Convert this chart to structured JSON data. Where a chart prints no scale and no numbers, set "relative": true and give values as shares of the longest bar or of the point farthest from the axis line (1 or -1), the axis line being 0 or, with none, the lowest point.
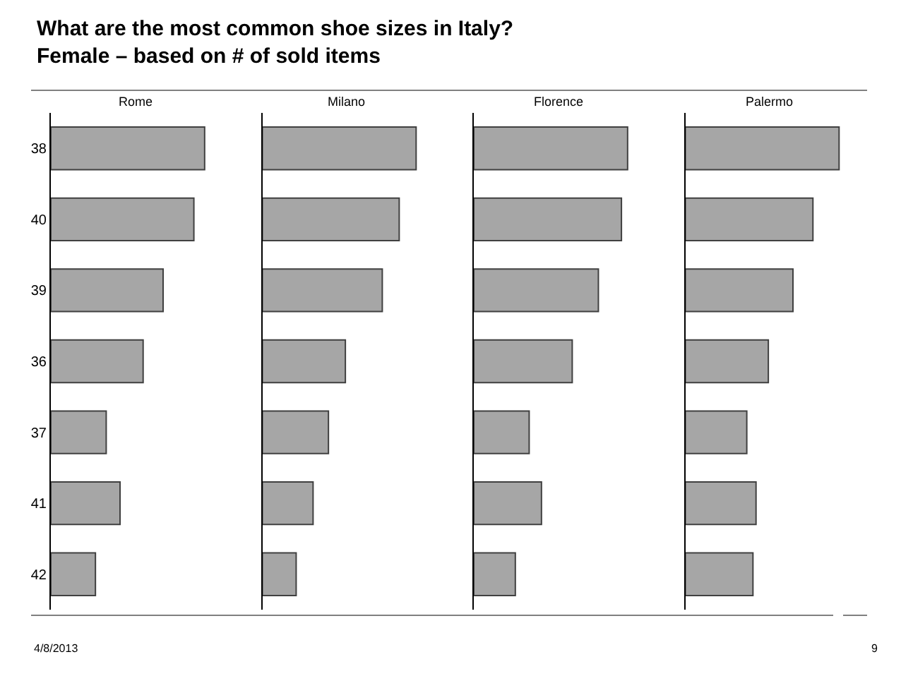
{
  "chart_data": [
    {
      "type": "other",
      "title": "What are the most common shoe sizes in Italy?",
      "subtitle": "Female – based on # of sold items",
      "annotations": [
        "4/8/2013",
        "9"
      ]
    },
    {
      "type": "bar",
      "orientation": "horizontal",
      "relative": true,
      "title": "Rome",
      "categories": [
        "38",
        "40",
        "39",
        "36",
        "37",
        "41",
        "42"
      ],
      "values": [
        1,
        0.93,
        0.73,
        0.6,
        0.36,
        0.45,
        0.29
      ],
      "color": "#a6a6a6",
      "tick_labels": "y"
    },
    {
      "type": "bar",
      "orientation": "horizontal",
      "relative": true,
      "title": "Milano",
      "categories": [
        "38",
        "40",
        "39",
        "36",
        "37",
        "41",
        "42"
      ],
      "values": [
        1,
        0.89,
        0.78,
        0.54,
        0.43,
        0.33,
        0.22
      ],
      "color": "#a6a6a6",
      "tick_labels": false
    },
    {
      "type": "bar",
      "orientation": "horizontal",
      "relative": true,
      "title": "Florence",
      "categories": [
        "38",
        "40",
        "39",
        "36",
        "37",
        "41",
        "42"
      ],
      "values": [
        1,
        0.96,
        0.81,
        0.64,
        0.36,
        0.44,
        0.27
      ],
      "color": "#a6a6a6",
      "tick_labels": false
    },
    {
      "type": "bar",
      "orientation": "horizontal",
      "relative": true,
      "title": "Palermo",
      "categories": [
        "38",
        "40",
        "39",
        "36",
        "37",
        "41",
        "42"
      ],
      "values": [
        1,
        0.83,
        0.7,
        0.54,
        0.4,
        0.46,
        0.44
      ],
      "color": "#a6a6a6",
      "tick_labels": false
    }
  ]
}
